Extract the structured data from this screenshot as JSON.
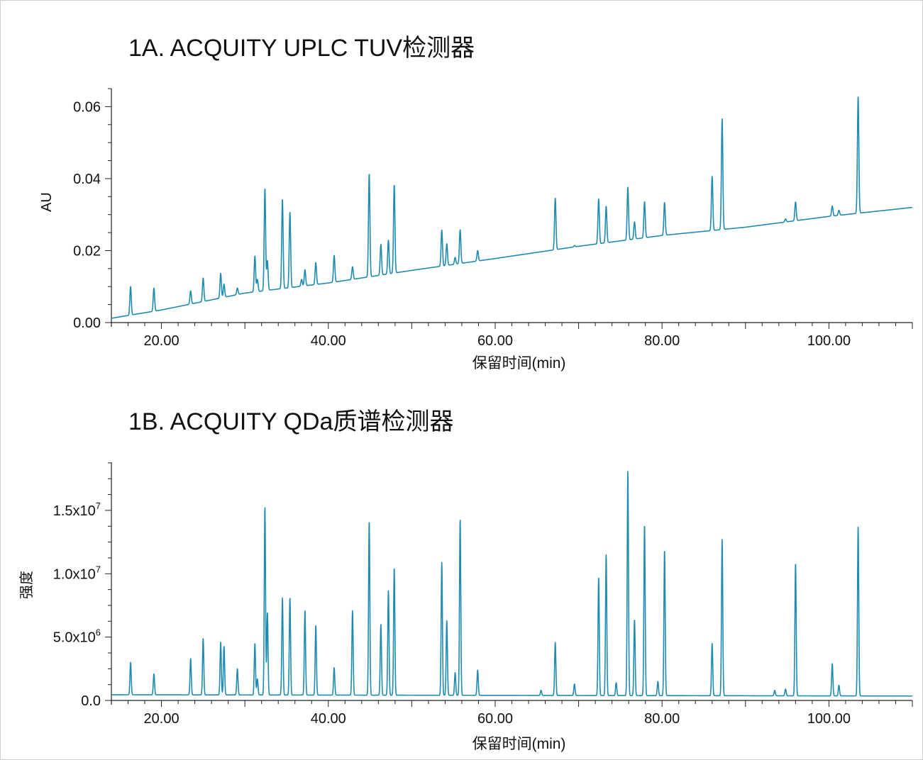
{
  "chart_data": [
    {
      "type": "line",
      "title": "1A. ACQUITY UPLC TUV检测器",
      "xlabel": "保留时间(min)",
      "ylabel": "AU",
      "xlim": [
        14,
        110
      ],
      "ylim": [
        0,
        0.065
      ],
      "x_ticks": [
        20,
        40,
        60,
        80,
        100
      ],
      "x_tick_labels": [
        "20.00",
        "40.00",
        "60.00",
        "80.00",
        "100.00"
      ],
      "y_ticks": [
        0,
        0.02,
        0.04,
        0.06
      ],
      "y_tick_labels": [
        "0.00",
        "0.02",
        "0.04",
        "0.06"
      ],
      "line_color": "#1f8bb0",
      "baseline": [
        [
          14,
          0.0012
        ],
        [
          20,
          0.0035
        ],
        [
          30,
          0.0082
        ],
        [
          40,
          0.011
        ],
        [
          50,
          0.0145
        ],
        [
          60,
          0.0178
        ],
        [
          70,
          0.0212
        ],
        [
          80,
          0.0242
        ],
        [
          90,
          0.0265
        ],
        [
          100,
          0.0295
        ],
        [
          110,
          0.032
        ]
      ],
      "peaks": [
        {
          "x": 16.3,
          "y": 0.01
        },
        {
          "x": 19.1,
          "y": 0.0096
        },
        {
          "x": 23.5,
          "y": 0.0088
        },
        {
          "x": 25.0,
          "y": 0.0124
        },
        {
          "x": 27.1,
          "y": 0.0137
        },
        {
          "x": 27.5,
          "y": 0.0107
        },
        {
          "x": 29.1,
          "y": 0.0096
        },
        {
          "x": 31.2,
          "y": 0.0185
        },
        {
          "x": 31.5,
          "y": 0.012
        },
        {
          "x": 32.4,
          "y": 0.0372
        },
        {
          "x": 32.7,
          "y": 0.0172
        },
        {
          "x": 34.5,
          "y": 0.0342
        },
        {
          "x": 35.4,
          "y": 0.0307
        },
        {
          "x": 36.8,
          "y": 0.012
        },
        {
          "x": 37.2,
          "y": 0.0147
        },
        {
          "x": 38.5,
          "y": 0.0167
        },
        {
          "x": 40.7,
          "y": 0.0187
        },
        {
          "x": 42.9,
          "y": 0.0155
        },
        {
          "x": 44.9,
          "y": 0.0414
        },
        {
          "x": 46.3,
          "y": 0.0217
        },
        {
          "x": 47.2,
          "y": 0.0229
        },
        {
          "x": 47.9,
          "y": 0.0383
        },
        {
          "x": 53.6,
          "y": 0.0257
        },
        {
          "x": 54.2,
          "y": 0.0219
        },
        {
          "x": 55.2,
          "y": 0.0181
        },
        {
          "x": 55.8,
          "y": 0.0258
        },
        {
          "x": 57.9,
          "y": 0.02
        },
        {
          "x": 67.2,
          "y": 0.0346
        },
        {
          "x": 69.5,
          "y": 0.0214
        },
        {
          "x": 72.4,
          "y": 0.0344
        },
        {
          "x": 73.3,
          "y": 0.0323
        },
        {
          "x": 75.9,
          "y": 0.0376
        },
        {
          "x": 76.7,
          "y": 0.028
        },
        {
          "x": 77.9,
          "y": 0.0336
        },
        {
          "x": 80.3,
          "y": 0.0334
        },
        {
          "x": 86.0,
          "y": 0.0406
        },
        {
          "x": 87.2,
          "y": 0.0566
        },
        {
          "x": 94.8,
          "y": 0.0288
        },
        {
          "x": 96.0,
          "y": 0.0335
        },
        {
          "x": 100.4,
          "y": 0.0324
        },
        {
          "x": 101.2,
          "y": 0.0312
        },
        {
          "x": 103.5,
          "y": 0.0627
        }
      ]
    },
    {
      "type": "line",
      "title": "1B. ACQUITY QDa质谱检测器",
      "xlabel": "保留时间(min)",
      "ylabel": "强度",
      "xlim": [
        14,
        110
      ],
      "ylim": [
        0,
        18800000
      ],
      "x_ticks": [
        20,
        40,
        60,
        80,
        100
      ],
      "x_tick_labels": [
        "20.00",
        "40.00",
        "60.00",
        "80.00",
        "100.00"
      ],
      "y_ticks": [
        0,
        5000000,
        10000000,
        15000000
      ],
      "y_tick_labels": [
        {
          "mantissa": "0.0",
          "exp": ""
        },
        {
          "mantissa": "5.0x10",
          "exp": "6"
        },
        {
          "mantissa": "1.0x10",
          "exp": "7"
        },
        {
          "mantissa": "1.5x10",
          "exp": "7"
        }
      ],
      "line_color": "#1f8bb0",
      "baseline": [
        [
          14,
          450000
        ],
        [
          110,
          350000
        ]
      ],
      "peaks": [
        {
          "x": 16.3,
          "y": 3000000
        },
        {
          "x": 19.1,
          "y": 2100000
        },
        {
          "x": 23.5,
          "y": 3300000
        },
        {
          "x": 25.0,
          "y": 4900000
        },
        {
          "x": 27.1,
          "y": 4600000
        },
        {
          "x": 27.5,
          "y": 4300000
        },
        {
          "x": 29.1,
          "y": 2500000
        },
        {
          "x": 31.2,
          "y": 4500000
        },
        {
          "x": 31.5,
          "y": 1700000
        },
        {
          "x": 32.4,
          "y": 15300000
        },
        {
          "x": 32.7,
          "y": 6900000
        },
        {
          "x": 34.5,
          "y": 8100000
        },
        {
          "x": 35.4,
          "y": 8100000
        },
        {
          "x": 37.2,
          "y": 7100000
        },
        {
          "x": 38.5,
          "y": 5900000
        },
        {
          "x": 40.7,
          "y": 2600000
        },
        {
          "x": 42.9,
          "y": 7100000
        },
        {
          "x": 44.9,
          "y": 14200000
        },
        {
          "x": 46.3,
          "y": 6000000
        },
        {
          "x": 47.2,
          "y": 8700000
        },
        {
          "x": 47.9,
          "y": 10500000
        },
        {
          "x": 53.6,
          "y": 10900000
        },
        {
          "x": 54.2,
          "y": 6300000
        },
        {
          "x": 55.2,
          "y": 2200000
        },
        {
          "x": 55.8,
          "y": 14300000
        },
        {
          "x": 57.9,
          "y": 2400000
        },
        {
          "x": 65.5,
          "y": 800000
        },
        {
          "x": 67.2,
          "y": 4600000
        },
        {
          "x": 69.5,
          "y": 1300000
        },
        {
          "x": 72.4,
          "y": 9700000
        },
        {
          "x": 73.3,
          "y": 11500000
        },
        {
          "x": 74.5,
          "y": 1400000
        },
        {
          "x": 75.9,
          "y": 18100000
        },
        {
          "x": 76.7,
          "y": 6400000
        },
        {
          "x": 77.9,
          "y": 13900000
        },
        {
          "x": 79.5,
          "y": 1500000
        },
        {
          "x": 80.3,
          "y": 11900000
        },
        {
          "x": 86.0,
          "y": 4500000
        },
        {
          "x": 87.2,
          "y": 12700000
        },
        {
          "x": 93.5,
          "y": 800000
        },
        {
          "x": 94.8,
          "y": 900000
        },
        {
          "x": 96.0,
          "y": 10800000
        },
        {
          "x": 100.4,
          "y": 2900000
        },
        {
          "x": 101.2,
          "y": 1200000
        },
        {
          "x": 103.5,
          "y": 13700000
        }
      ]
    }
  ]
}
